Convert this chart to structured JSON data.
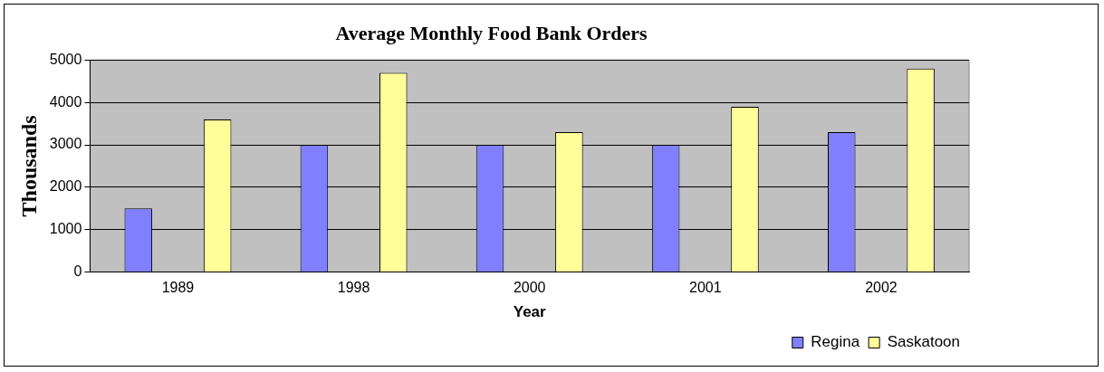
{
  "chart_data": {
    "type": "bar",
    "title": "Average Monthly Food Bank Orders",
    "xlabel": "Year",
    "ylabel": "Thousands",
    "categories": [
      "1989",
      "1998",
      "2000",
      "2001",
      "2002"
    ],
    "series": [
      {
        "name": "Regina",
        "color": "#8080ff",
        "values": [
          1500,
          3000,
          3000,
          3000,
          3300
        ]
      },
      {
        "name": "Saskatoon",
        "color": "#ffff99",
        "values": [
          3600,
          4700,
          3300,
          3900,
          4800
        ]
      }
    ],
    "ylim": [
      0,
      5000
    ],
    "yticks": [
      0,
      1000,
      2000,
      3000,
      4000,
      5000
    ],
    "grid": "y",
    "legend": "bottom right"
  }
}
